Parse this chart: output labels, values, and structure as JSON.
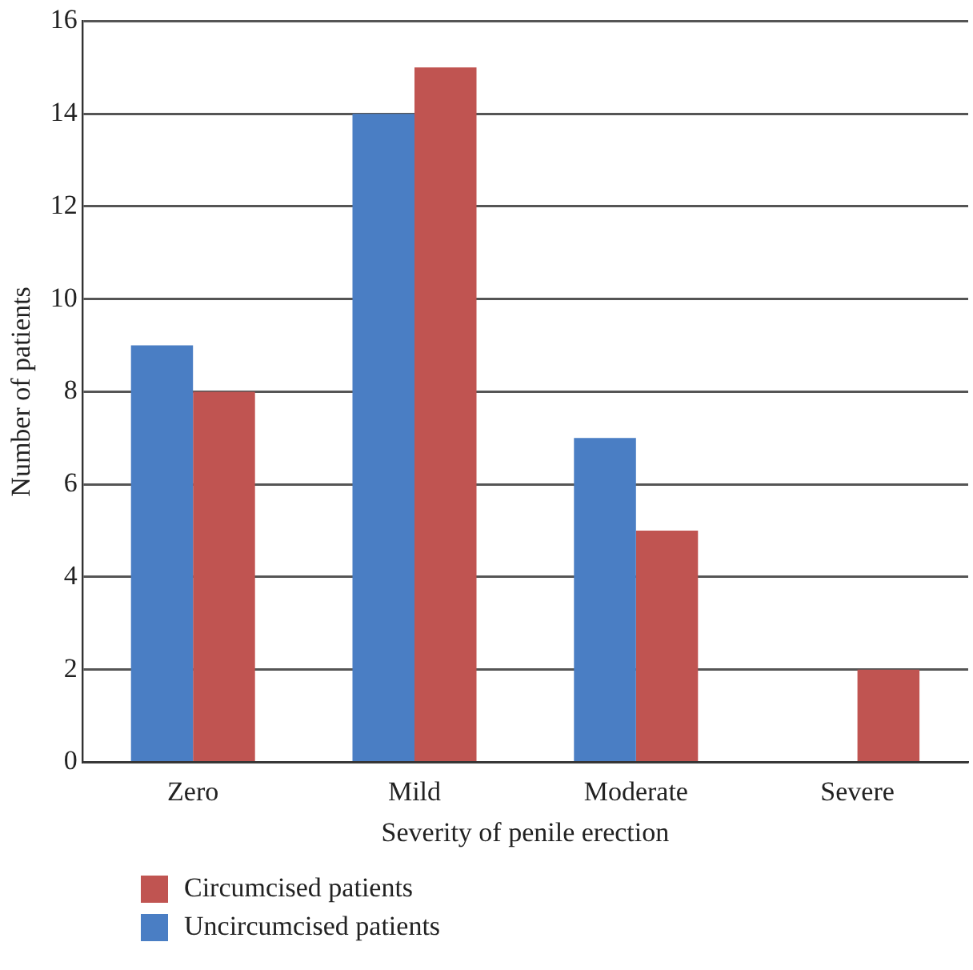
{
  "chart_data": {
    "type": "bar",
    "xlabel": "Severity of penile erection",
    "ylabel": "Number of patients",
    "categories": [
      "Zero",
      "Mild",
      "Moderate",
      "Severe"
    ],
    "series": [
      {
        "name": "Uncircumcised patients",
        "color": "#4a7ec4",
        "values": [
          9,
          14,
          7,
          0
        ]
      },
      {
        "name": "Circumcised patients",
        "color": "#c05451",
        "values": [
          8,
          15,
          5,
          2
        ]
      }
    ],
    "ylim": [
      0,
      16
    ],
    "yticks": [
      0,
      2,
      4,
      6,
      8,
      10,
      12,
      14,
      16
    ],
    "grid": "y",
    "legend": "bottom left"
  }
}
